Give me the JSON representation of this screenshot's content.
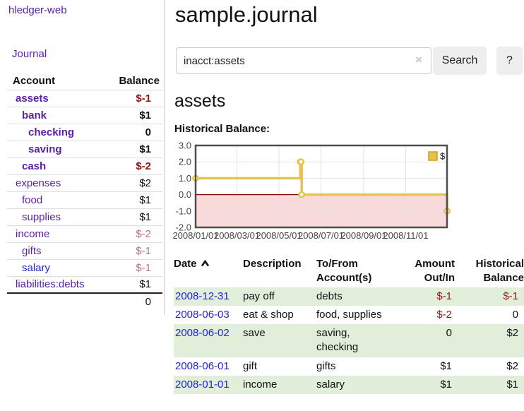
{
  "sidebar": {
    "brand": "hledger-web",
    "nav": {
      "journal": "Journal"
    },
    "accounts_table": {
      "headers": {
        "account": "Account",
        "balance": "Balance"
      },
      "rows": [
        {
          "account": "assets",
          "balance": "$-1",
          "level": 0,
          "bold": true,
          "balance_style": "neg-strong",
          "link_color": "purple"
        },
        {
          "account": "bank",
          "balance": "$1",
          "level": 1,
          "bold": true,
          "balance_style": "pos",
          "link_color": "purple"
        },
        {
          "account": "checking",
          "balance": "0",
          "level": 2,
          "bold": true,
          "balance_style": "pos",
          "link_color": "purple"
        },
        {
          "account": "saving",
          "balance": "$1",
          "level": 2,
          "bold": true,
          "balance_style": "pos",
          "link_color": "purple"
        },
        {
          "account": "cash",
          "balance": "$-2",
          "level": 1,
          "bold": true,
          "balance_style": "neg-strong",
          "link_color": "purple"
        },
        {
          "account": "expenses",
          "balance": "$2",
          "level": 0,
          "bold": false,
          "balance_style": "pos",
          "link_color": "purple"
        },
        {
          "account": "food",
          "balance": "$1",
          "level": 1,
          "bold": false,
          "balance_style": "pos",
          "link_color": "purple"
        },
        {
          "account": "supplies",
          "balance": "$1",
          "level": 1,
          "bold": false,
          "balance_style": "pos",
          "link_color": "purple"
        },
        {
          "account": "income",
          "balance": "$-2",
          "level": 0,
          "bold": false,
          "balance_style": "neg-light",
          "link_color": "purple"
        },
        {
          "account": "gifts",
          "balance": "$-1",
          "level": 1,
          "bold": false,
          "balance_style": "neg-light",
          "link_color": "purple"
        },
        {
          "account": "salary",
          "balance": "$-1",
          "level": 1,
          "bold": false,
          "balance_style": "neg-light",
          "link_color": "blue"
        },
        {
          "account": "liabilities:debts",
          "balance": "$1",
          "level": 0,
          "bold": false,
          "balance_style": "pos",
          "link_color": "purple"
        }
      ],
      "total": "0"
    }
  },
  "main": {
    "title": "sample.journal",
    "search": {
      "value": "inacct:assets",
      "clear_icon": "×",
      "search_button": "Search",
      "help_button": "?"
    },
    "section_title": "assets",
    "chart_label": "Historical Balance:",
    "register_table": {
      "headers": {
        "date": "Date",
        "sort_icon": "caret-up",
        "description": "Description",
        "tofrom": "To/From Account(s)",
        "amount": "Amount Out/In",
        "historical": "Historical Balance"
      },
      "rows": [
        {
          "date": "2008-12-31",
          "description": "pay off",
          "accounts_lines": [
            "debts"
          ],
          "amount": "$-1",
          "amount_neg": true,
          "balance": "$-1",
          "balance_neg": true
        },
        {
          "date": "2008-06-03",
          "description": "eat & shop",
          "accounts_lines": [
            "food, supplies"
          ],
          "amount": "$-2",
          "amount_neg": true,
          "balance": "0",
          "balance_neg": false
        },
        {
          "date": "2008-06-02",
          "description": "save",
          "accounts_lines": [
            "saving,",
            "checking"
          ],
          "amount": "0",
          "amount_neg": false,
          "balance": "$2",
          "balance_neg": false
        },
        {
          "date": "2008-06-01",
          "description": "gift",
          "accounts_lines": [
            "gifts"
          ],
          "amount": "$1",
          "amount_neg": false,
          "balance": "$2",
          "balance_neg": false
        },
        {
          "date": "2008-01-01",
          "description": "income",
          "accounts_lines": [
            "salary"
          ],
          "amount": "$1",
          "amount_neg": false,
          "balance": "$1",
          "balance_neg": false
        }
      ]
    }
  },
  "chart_data": {
    "type": "line",
    "step": true,
    "title": "Historical Balance:",
    "series": [
      {
        "name": "$",
        "color": "#e7c24b",
        "points": [
          [
            "2008-01-01",
            1
          ],
          [
            "2008-06-01",
            2
          ],
          [
            "2008-06-02",
            2
          ],
          [
            "2008-06-03",
            0
          ],
          [
            "2008-12-31",
            -1
          ]
        ]
      }
    ],
    "x_ticks": [
      "2008/01/01",
      "2008/03/01",
      "2008/05/01",
      "2008/07/01",
      "2008/09/01",
      "2008/11/01"
    ],
    "y_ticks": [
      "3.0",
      "2.0",
      "1.0",
      "0.0",
      "-1.0",
      "-2.0"
    ],
    "xlim": [
      "2008-01-01",
      "2008-12-31"
    ],
    "ylim": [
      -2,
      3
    ],
    "grid": true,
    "negative_region_color": "#f9dada",
    "zero_line_color": "#8b0000",
    "legend": {
      "label": "$",
      "position": "top-right"
    }
  }
}
